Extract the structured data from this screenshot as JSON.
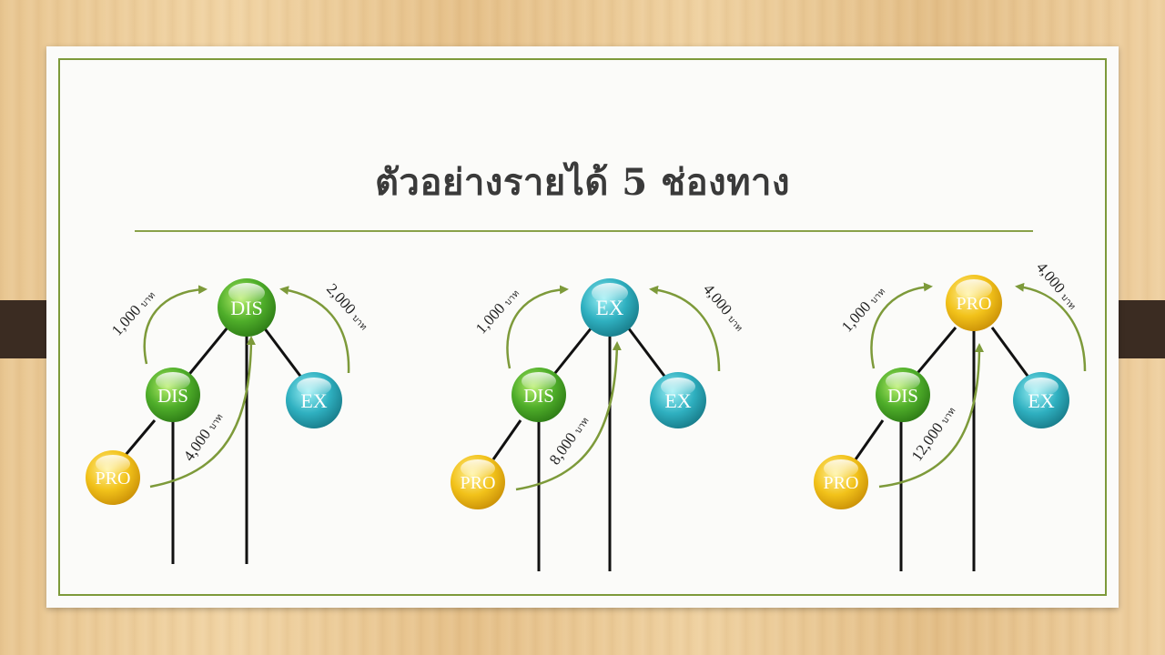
{
  "title": "ตัวอย่างรายได้ 5 ช่องทาง",
  "colors": {
    "accent": "#7d9a3a",
    "dis_green": "#4fae2a",
    "ex_teal": "#2fb0c0",
    "pro_gold": "#f2c21a"
  },
  "diagrams": [
    {
      "top_node": "DIS",
      "left_node": "DIS",
      "right_node": "EX",
      "bottom_node": "PRO",
      "income_left": "1,000",
      "income_right": "2,000",
      "income_center": "4,000",
      "unit": "บาท"
    },
    {
      "top_node": "EX",
      "left_node": "DIS",
      "right_node": "EX",
      "bottom_node": "PRO",
      "income_left": "1,000",
      "income_right": "4,000",
      "income_center": "8,000",
      "unit": "บาท"
    },
    {
      "top_node": "PRO",
      "left_node": "DIS",
      "right_node": "EX",
      "bottom_node": "PRO",
      "income_left": "1,000",
      "income_right": "4,000",
      "income_center": "12,000",
      "unit": "บาท"
    }
  ]
}
